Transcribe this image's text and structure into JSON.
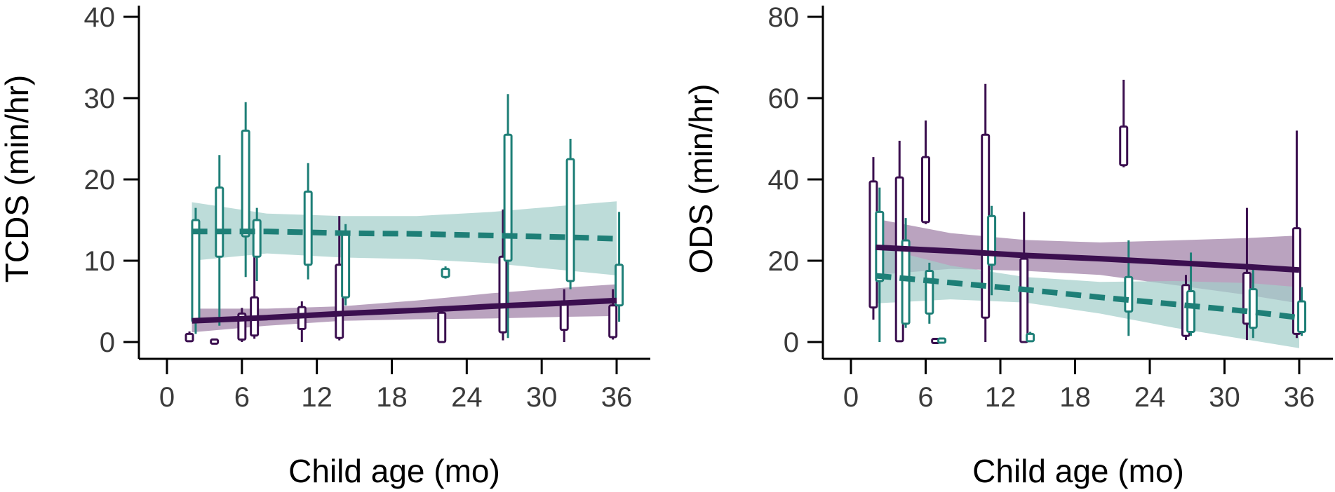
{
  "chart_data": [
    {
      "type": "scatter",
      "title": "",
      "xlabel": "Child age (mo)",
      "ylabel": "TCDS (min/hr)",
      "xlim": [
        -3,
        39.5
      ],
      "ylim": [
        -2,
        42
      ],
      "xticks": [
        0,
        6,
        12,
        18,
        24,
        30,
        36
      ],
      "xtick_labels": [
        "0",
        "6",
        "12",
        "18",
        "24",
        "30",
        "36"
      ],
      "yticks": [
        0,
        10,
        20,
        30,
        40
      ],
      "ytick_labels": [
        "0",
        "10",
        "20",
        "30",
        "40"
      ],
      "grid": false,
      "legend": "none",
      "series": [
        {
          "color": "#3b0f4f",
          "band_color": "#a07fa6",
          "line_style": "solid",
          "trend": {
            "x": [
              2,
              8,
              14,
              20,
              26,
              32,
              36
            ],
            "y": [
              2.6,
              3.0,
              3.5,
              3.9,
              4.4,
              4.8,
              5.1
            ],
            "lower": [
              1.2,
              2.0,
              2.6,
              2.8,
              2.9,
              3.1,
              3.2
            ],
            "upper": [
              4.1,
              4.1,
              4.4,
              5.1,
              6.0,
              6.7,
              7.1
            ]
          },
          "boxes": [
            {
              "x": 1.8,
              "lo": 0,
              "q1": 0.1,
              "q3": 1.0,
              "hi": 1.3
            },
            {
              "x": 3.8,
              "lo": 0,
              "q1": 0,
              "q3": 0.1,
              "hi": 0.2
            },
            {
              "x": 6.0,
              "lo": 0,
              "q1": 0.3,
              "q3": 3.5,
              "hi": 4.2
            },
            {
              "x": 7.0,
              "lo": 0.4,
              "q1": 0.8,
              "q3": 5.5,
              "hi": 11.8
            },
            {
              "x": 10.8,
              "lo": 0,
              "q1": 1.6,
              "q3": 4.3,
              "hi": 5.0
            },
            {
              "x": 13.8,
              "lo": 0.2,
              "q1": 0.5,
              "q3": 9.5,
              "hi": 15.5
            },
            {
              "x": 22.0,
              "lo": 0,
              "q1": 0,
              "q3": 3.6,
              "hi": 4.0
            },
            {
              "x": 26.9,
              "lo": 0.2,
              "q1": 1.2,
              "q3": 10.5,
              "hi": 16.3
            },
            {
              "x": 31.8,
              "lo": 0,
              "q1": 1.5,
              "q3": 5.0,
              "hi": 6.5
            },
            {
              "x": 35.7,
              "lo": 0.3,
              "q1": 0.6,
              "q3": 4.5,
              "hi": 6.5
            }
          ]
        },
        {
          "color": "#1e7f77",
          "band_color": "#a3cfcb",
          "line_style": "dashed",
          "trend": {
            "x": [
              2,
              8,
              14,
              20,
              26,
              32,
              36
            ],
            "y": [
              13.6,
              13.6,
              13.4,
              13.3,
              13.1,
              12.9,
              12.7
            ],
            "lower": [
              10.0,
              10.9,
              10.4,
              10.2,
              9.7,
              8.8,
              8.2
            ],
            "upper": [
              17.2,
              15.8,
              15.5,
              15.5,
              16.0,
              16.8,
              17.3
            ]
          },
          "boxes": [
            {
              "x": 2.3,
              "lo": 1.0,
              "q1": 2.5,
              "q3": 15.0,
              "hi": 16.5
            },
            {
              "x": 4.2,
              "lo": 2.0,
              "q1": 10.5,
              "q3": 19.0,
              "hi": 23.0
            },
            {
              "x": 6.3,
              "lo": 8.0,
              "q1": 13.0,
              "q3": 26.0,
              "hi": 29.5
            },
            {
              "x": 7.2,
              "lo": 7.5,
              "q1": 10.5,
              "q3": 15.0,
              "hi": 16.5
            },
            {
              "x": 11.3,
              "lo": 7.7,
              "q1": 9.5,
              "q3": 18.5,
              "hi": 22.0
            },
            {
              "x": 14.3,
              "lo": 4.5,
              "q1": 5.5,
              "q3": 13.5,
              "hi": 14.5
            },
            {
              "x": 22.3,
              "lo": 7.8,
              "q1": 8.0,
              "q3": 9.0,
              "hi": 9.3
            },
            {
              "x": 27.3,
              "lo": 0.5,
              "q1": 10.0,
              "q3": 25.5,
              "hi": 30.5
            },
            {
              "x": 32.3,
              "lo": 6.5,
              "q1": 7.5,
              "q3": 22.5,
              "hi": 25.0
            },
            {
              "x": 36.2,
              "lo": 2.5,
              "q1": 4.5,
              "q3": 9.5,
              "hi": 16.0
            }
          ]
        }
      ]
    },
    {
      "type": "scatter",
      "title": "",
      "xlabel": "Child age (mo)",
      "ylabel": "ODS (min/hr)",
      "xlim": [
        -3,
        39.5
      ],
      "ylim": [
        -4,
        84
      ],
      "xticks": [
        0,
        6,
        12,
        18,
        24,
        30,
        36
      ],
      "xtick_labels": [
        "0",
        "6",
        "12",
        "18",
        "24",
        "30",
        "36"
      ],
      "yticks": [
        0,
        20,
        40,
        60,
        80
      ],
      "ytick_labels": [
        "0",
        "20",
        "40",
        "60",
        "80"
      ],
      "grid": false,
      "legend": "none",
      "series": [
        {
          "color": "#3b0f4f",
          "band_color": "#a07fa6",
          "line_style": "solid",
          "trend": {
            "x": [
              2,
              8,
              14,
              20,
              26,
              32,
              36
            ],
            "y": [
              23.3,
              22.4,
              21.3,
              20.5,
              19.5,
              18.5,
              17.7
            ],
            "lower": [
              16.5,
              18.0,
              17.5,
              16.5,
              14.0,
              11.5,
              9.5
            ],
            "upper": [
              30.3,
              26.8,
              25.1,
              24.5,
              25.0,
              25.6,
              26.2
            ]
          },
          "boxes": [
            {
              "x": 1.8,
              "lo": 5.5,
              "q1": 8.5,
              "q3": 39.5,
              "hi": 45.5
            },
            {
              "x": 3.9,
              "lo": 0,
              "q1": 0.2,
              "q3": 40.5,
              "hi": 49.5
            },
            {
              "x": 6.0,
              "lo": 29.0,
              "q1": 29.5,
              "q3": 45.5,
              "hi": 54.5
            },
            {
              "x": 6.8,
              "lo": 0,
              "q1": 0.1,
              "q3": 0.4,
              "hi": 0.6
            },
            {
              "x": 10.8,
              "lo": 0,
              "q1": 6.0,
              "q3": 51.0,
              "hi": 63.5
            },
            {
              "x": 13.9,
              "lo": 0,
              "q1": 0,
              "q3": 20.5,
              "hi": 32.0
            },
            {
              "x": 21.9,
              "lo": 43.0,
              "q1": 43.5,
              "q3": 53.0,
              "hi": 64.5
            },
            {
              "x": 26.9,
              "lo": 0.5,
              "q1": 1.5,
              "q3": 14.0,
              "hi": 16.5
            },
            {
              "x": 31.8,
              "lo": 0.5,
              "q1": 4.5,
              "q3": 17.0,
              "hi": 33.0
            },
            {
              "x": 35.8,
              "lo": 1.0,
              "q1": 2.0,
              "q3": 28.0,
              "hi": 52.0
            }
          ]
        },
        {
          "color": "#1e7f77",
          "band_color": "#a3cfcb",
          "line_style": "dashed",
          "trend": {
            "x": [
              2,
              8,
              14,
              20,
              26,
              32,
              36
            ],
            "y": [
              16.3,
              14.6,
              12.9,
              11.0,
              9.3,
              7.5,
              6.0
            ],
            "lower": [
              9.5,
              10.5,
              9.7,
              7.0,
              3.5,
              0.5,
              -1.5
            ],
            "upper": [
              23.5,
              18.8,
              16.0,
              14.8,
              15.0,
              14.5,
              13.5
            ]
          },
          "boxes": [
            {
              "x": 2.3,
              "lo": 0,
              "q1": 15.0,
              "q3": 32.0,
              "hi": 38.0
            },
            {
              "x": 4.4,
              "lo": 3.5,
              "q1": 4.5,
              "q3": 25.0,
              "hi": 30.5
            },
            {
              "x": 6.3,
              "lo": 4.5,
              "q1": 7.0,
              "q3": 17.5,
              "hi": 19.5
            },
            {
              "x": 7.3,
              "lo": 0,
              "q1": 0.1,
              "q3": 0.6,
              "hi": 0.8
            },
            {
              "x": 11.3,
              "lo": 11.5,
              "q1": 19.0,
              "q3": 31.0,
              "hi": 33.5
            },
            {
              "x": 14.4,
              "lo": 0,
              "q1": 0.2,
              "q3": 2.0,
              "hi": 2.5
            },
            {
              "x": 22.3,
              "lo": 1.5,
              "q1": 7.5,
              "q3": 16.0,
              "hi": 25.0
            },
            {
              "x": 27.3,
              "lo": 1.5,
              "q1": 2.5,
              "q3": 12.5,
              "hi": 22.0
            },
            {
              "x": 32.3,
              "lo": 1.0,
              "q1": 3.5,
              "q3": 13.0,
              "hi": 18.0
            },
            {
              "x": 36.2,
              "lo": 1.5,
              "q1": 2.5,
              "q3": 10.0,
              "hi": 13.5
            }
          ]
        }
      ]
    }
  ]
}
